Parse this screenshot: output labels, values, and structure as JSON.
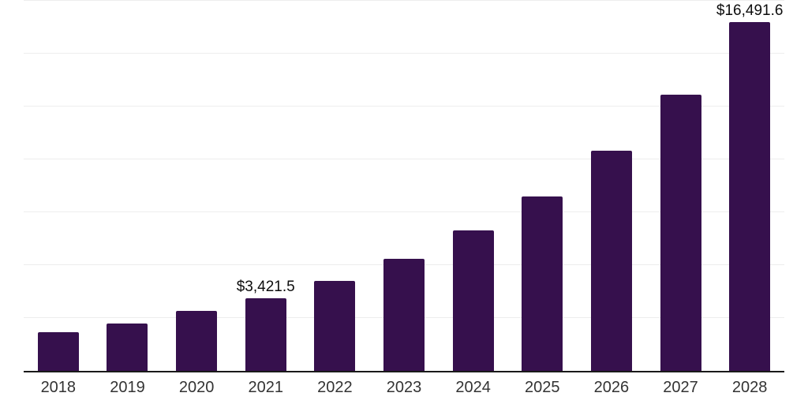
{
  "chart_data": {
    "type": "bar",
    "title": "",
    "xlabel": "",
    "ylabel": "",
    "categories": [
      "2018",
      "2019",
      "2020",
      "2021",
      "2022",
      "2023",
      "2024",
      "2025",
      "2026",
      "2027",
      "2028"
    ],
    "values": [
      1830,
      2240,
      2830,
      3421.5,
      4250,
      5300,
      6640,
      8250,
      10410,
      13060,
      16491.6
    ],
    "value_labels": [
      "",
      "",
      "",
      "$3,421.5",
      "",
      "",
      "",
      "",
      "",
      "",
      "$16,491.6"
    ],
    "ylim": [
      0,
      17500
    ],
    "gridline_interval": 2500,
    "grid": "horizontal",
    "legend": "none",
    "colors": {
      "bar": "#36104d",
      "axis_line": "#1a1a1a",
      "gridline": "#ededed",
      "tick_label": "#333333",
      "value_label": "#0d0d0d",
      "background": "#ffffff"
    }
  }
}
